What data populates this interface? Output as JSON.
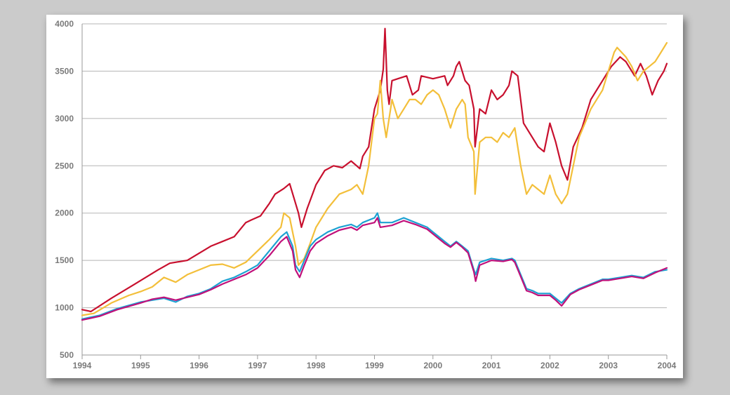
{
  "chart_data": {
    "type": "line",
    "title": "",
    "xlabel": "",
    "ylabel": "",
    "xlim": [
      1994,
      2004
    ],
    "ylim": [
      500,
      4000
    ],
    "grid": true,
    "x_ticks": [
      "1994",
      "1995",
      "1996",
      "1997",
      "1998",
      "1999",
      "2000",
      "2001",
      "2002",
      "2003",
      "2004"
    ],
    "y_ticks": [
      "500",
      "1000",
      "1500",
      "2000",
      "2500",
      "3000",
      "3500",
      "4000"
    ],
    "series": [
      {
        "color": "#c8102e",
        "x": [
          1994.0,
          1994.15,
          1994.5,
          1994.9,
          1995.3,
          1995.5,
          1995.8,
          1996.2,
          1996.4,
          1996.6,
          1996.8,
          1996.9,
          1997.05,
          1997.2,
          1997.3,
          1997.45,
          1997.55,
          1997.7,
          1997.75,
          1997.85,
          1998.0,
          1998.15,
          1998.3,
          1998.45,
          1998.6,
          1998.75,
          1998.8,
          1998.9,
          1998.95,
          1999.0,
          1999.1,
          1999.15,
          1999.18,
          1999.22,
          1999.25,
          1999.3,
          1999.4,
          1999.55,
          1999.65,
          1999.75,
          1999.8,
          2000.0,
          2000.2,
          2000.25,
          2000.35,
          2000.4,
          2000.45,
          2000.55,
          2000.62,
          2000.7,
          2000.72,
          2000.8,
          2000.9,
          2001.0,
          2001.1,
          2001.2,
          2001.3,
          2001.35,
          2001.45,
          2001.55,
          2001.65,
          2001.8,
          2001.9,
          2002.0,
          2002.1,
          2002.2,
          2002.3,
          2002.4,
          2002.55,
          2002.7,
          2002.9,
          2003.05,
          2003.2,
          2003.3,
          2003.45,
          2003.55,
          2003.65,
          2003.75,
          2003.85,
          2003.95,
          2004.0
        ],
        "y": [
          980,
          960,
          1100,
          1250,
          1400,
          1470,
          1500,
          1650,
          1700,
          1750,
          1900,
          1930,
          1970,
          2100,
          2200,
          2260,
          2310,
          2000,
          1850,
          2050,
          2300,
          2450,
          2500,
          2480,
          2550,
          2470,
          2600,
          2700,
          2900,
          3100,
          3300,
          3520,
          3950,
          3300,
          3150,
          3400,
          3420,
          3450,
          3250,
          3300,
          3450,
          3420,
          3450,
          3350,
          3450,
          3550,
          3600,
          3400,
          3350,
          3100,
          2700,
          3100,
          3050,
          3300,
          3200,
          3250,
          3350,
          3500,
          3450,
          2950,
          2850,
          2700,
          2650,
          2950,
          2750,
          2500,
          2350,
          2700,
          2900,
          3200,
          3400,
          3550,
          3650,
          3600,
          3450,
          3580,
          3450,
          3250,
          3400,
          3500,
          3580
        ]
      },
      {
        "color": "#f3bf3a",
        "x": [
          1994.0,
          1994.2,
          1994.5,
          1994.8,
          1995.0,
          1995.2,
          1995.4,
          1995.6,
          1995.8,
          1996.0,
          1996.2,
          1996.4,
          1996.6,
          1996.8,
          1997.0,
          1997.2,
          1997.4,
          1997.45,
          1997.55,
          1997.65,
          1997.7,
          1997.8,
          1997.9,
          1998.0,
          1998.2,
          1998.4,
          1998.6,
          1998.7,
          1998.8,
          1998.9,
          1999.0,
          1999.05,
          1999.1,
          1999.15,
          1999.2,
          1999.3,
          1999.4,
          1999.5,
          1999.6,
          1999.7,
          1999.8,
          1999.9,
          2000.0,
          2000.1,
          2000.2,
          2000.3,
          2000.4,
          2000.5,
          2000.55,
          2000.6,
          2000.7,
          2000.72,
          2000.8,
          2000.9,
          2001.0,
          2001.1,
          2001.2,
          2001.3,
          2001.4,
          2001.45,
          2001.5,
          2001.6,
          2001.7,
          2001.8,
          2001.9,
          2002.0,
          2002.1,
          2002.2,
          2002.3,
          2002.5,
          2002.7,
          2002.9,
          2003.0,
          2003.1,
          2003.15,
          2003.3,
          2003.4,
          2003.5,
          2003.6,
          2003.7,
          2003.8,
          2003.9,
          2004.0
        ],
        "y": [
          920,
          940,
          1050,
          1130,
          1170,
          1220,
          1320,
          1270,
          1350,
          1400,
          1450,
          1460,
          1420,
          1480,
          1600,
          1720,
          1850,
          2000,
          1950,
          1650,
          1450,
          1520,
          1680,
          1850,
          2050,
          2200,
          2250,
          2300,
          2200,
          2500,
          3000,
          3050,
          3400,
          3000,
          2800,
          3200,
          3000,
          3100,
          3200,
          3200,
          3150,
          3250,
          3300,
          3250,
          3100,
          2900,
          3100,
          3200,
          3150,
          2800,
          2650,
          2200,
          2750,
          2800,
          2800,
          2750,
          2850,
          2800,
          2900,
          2700,
          2500,
          2200,
          2300,
          2250,
          2200,
          2400,
          2200,
          2100,
          2200,
          2800,
          3100,
          3300,
          3500,
          3700,
          3750,
          3650,
          3550,
          3400,
          3500,
          3550,
          3600,
          3700,
          3800
        ]
      },
      {
        "color": "#1da1d2",
        "x": [
          1994.0,
          1994.3,
          1994.6,
          1995.0,
          1995.2,
          1995.4,
          1995.6,
          1995.8,
          1996.0,
          1996.2,
          1996.4,
          1996.6,
          1996.8,
          1997.0,
          1997.2,
          1997.4,
          1997.5,
          1997.6,
          1997.65,
          1997.72,
          1997.8,
          1997.9,
          1998.0,
          1998.2,
          1998.4,
          1998.6,
          1998.7,
          1998.8,
          1999.0,
          1999.05,
          1999.1,
          1999.3,
          1999.5,
          1999.7,
          1999.9,
          2000.0,
          2000.1,
          2000.2,
          2000.3,
          2000.4,
          2000.5,
          2000.6,
          2000.7,
          2000.73,
          2000.8,
          2001.0,
          2001.2,
          2001.35,
          2001.4,
          2001.5,
          2001.6,
          2001.7,
          2001.8,
          2002.0,
          2002.1,
          2002.2,
          2002.35,
          2002.5,
          2002.7,
          2002.9,
          2003.0,
          2003.2,
          2003.4,
          2003.6,
          2003.8,
          2004.0
        ],
        "y": [
          880,
          920,
          990,
          1060,
          1080,
          1100,
          1060,
          1120,
          1150,
          1200,
          1280,
          1320,
          1380,
          1450,
          1600,
          1750,
          1800,
          1650,
          1450,
          1380,
          1500,
          1650,
          1720,
          1800,
          1850,
          1880,
          1850,
          1900,
          1950,
          2000,
          1900,
          1900,
          1950,
          1900,
          1850,
          1800,
          1750,
          1700,
          1650,
          1700,
          1650,
          1600,
          1400,
          1350,
          1480,
          1520,
          1500,
          1520,
          1500,
          1350,
          1200,
          1180,
          1150,
          1150,
          1100,
          1050,
          1150,
          1200,
          1250,
          1300,
          1300,
          1320,
          1340,
          1320,
          1380,
          1400
        ]
      },
      {
        "color": "#c0107a",
        "x": [
          1994.0,
          1994.3,
          1994.6,
          1995.0,
          1995.2,
          1995.4,
          1995.6,
          1995.8,
          1996.0,
          1996.2,
          1996.4,
          1996.6,
          1996.8,
          1997.0,
          1997.2,
          1997.4,
          1997.5,
          1997.6,
          1997.65,
          1997.72,
          1997.8,
          1997.9,
          1998.0,
          1998.2,
          1998.4,
          1998.6,
          1998.7,
          1998.8,
          1999.0,
          1999.05,
          1999.1,
          1999.3,
          1999.5,
          1999.7,
          1999.9,
          2000.0,
          2000.1,
          2000.2,
          2000.3,
          2000.4,
          2000.5,
          2000.6,
          2000.7,
          2000.73,
          2000.8,
          2001.0,
          2001.2,
          2001.35,
          2001.4,
          2001.5,
          2001.6,
          2001.7,
          2001.8,
          2002.0,
          2002.1,
          2002.2,
          2002.35,
          2002.5,
          2002.7,
          2002.9,
          2003.0,
          2003.2,
          2003.4,
          2003.6,
          2003.8,
          2004.0
        ],
        "y": [
          870,
          910,
          980,
          1050,
          1090,
          1110,
          1080,
          1110,
          1140,
          1190,
          1250,
          1300,
          1350,
          1420,
          1550,
          1700,
          1750,
          1600,
          1400,
          1320,
          1450,
          1600,
          1680,
          1760,
          1820,
          1850,
          1820,
          1870,
          1900,
          1950,
          1850,
          1870,
          1920,
          1880,
          1830,
          1780,
          1730,
          1680,
          1640,
          1690,
          1640,
          1580,
          1380,
          1280,
          1450,
          1500,
          1490,
          1510,
          1480,
          1330,
          1180,
          1160,
          1130,
          1130,
          1080,
          1020,
          1140,
          1190,
          1240,
          1290,
          1290,
          1310,
          1330,
          1310,
          1370,
          1420
        ]
      }
    ]
  }
}
